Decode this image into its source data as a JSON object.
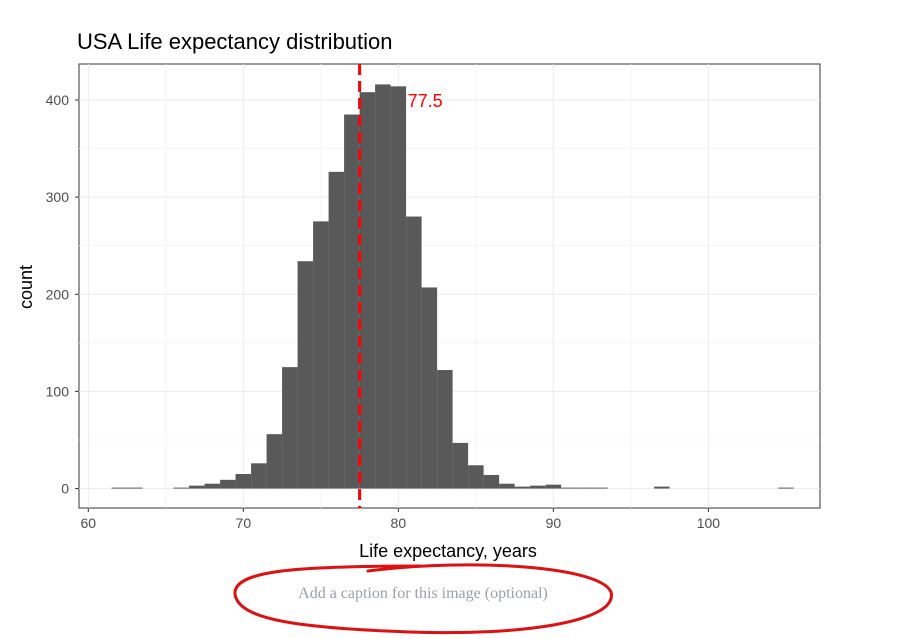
{
  "chart_data": {
    "type": "bar",
    "title": "USA Life expectancy distribution",
    "xlabel": "Life expectancy, years",
    "ylabel": "count",
    "xlim": [
      59.4,
      107.2
    ],
    "ylim": [
      -20,
      437
    ],
    "x_ticks": [
      60,
      70,
      80,
      90,
      100
    ],
    "y_ticks": [
      0,
      100,
      200,
      300,
      400
    ],
    "bin_width": 1,
    "bin_starts": [
      61.5,
      62.5,
      65.5,
      66.5,
      67.5,
      68.5,
      69.5,
      70.5,
      71.5,
      72.5,
      73.5,
      74.5,
      75.5,
      76.5,
      77.5,
      78.5,
      79.5,
      80.5,
      81.5,
      82.5,
      83.5,
      84.5,
      85.5,
      86.5,
      87.5,
      88.5,
      89.5,
      90.5,
      91.5,
      92.5,
      96.5,
      104.5
    ],
    "values": [
      1,
      1,
      1,
      3,
      5,
      9,
      15,
      26,
      56,
      125,
      234,
      275,
      326,
      385,
      408,
      416,
      414,
      280,
      207,
      122,
      47,
      24,
      14,
      5,
      2,
      3,
      4,
      1,
      1,
      1,
      2,
      1
    ],
    "bar_color": "#595959",
    "grid": true,
    "reference_line": {
      "x": 77.5,
      "label": "77.5",
      "color": "#ff0000",
      "style": "dashed",
      "label_y": 399
    }
  },
  "caption": {
    "placeholder": "Add a caption for this image (optional)",
    "value": "",
    "highlight_color": "#dd1111"
  }
}
